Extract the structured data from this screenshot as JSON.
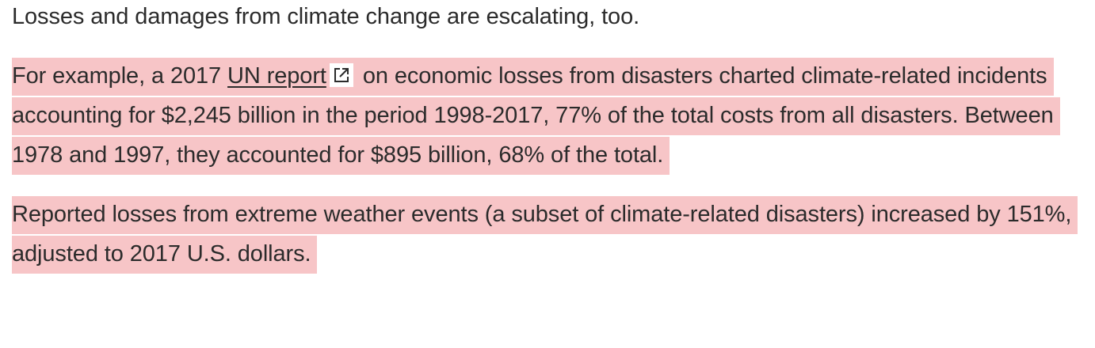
{
  "article": {
    "paragraph_1": "Losses and damages from climate change are escalating, too.",
    "paragraph_2": {
      "before_link": "For example, a 2017 ",
      "link_text": "UN report",
      "link_icon": "external-link-icon",
      "after_link": " on economic losses from disasters charted climate-related incidents accounting for $2,245 billion in the period 1998-2017, 77% of the total costs from all disasters. Between 1978 and 1997, they accounted for $895 billion, 68% of the total."
    },
    "paragraph_3": "Reported losses from extreme weather events (a subset of climate-related disasters) increased by 151%, adjusted to 2017 U.S. dollars.",
    "highlight_color": "#f7c5c7",
    "text_color": "#2b2b2b"
  }
}
